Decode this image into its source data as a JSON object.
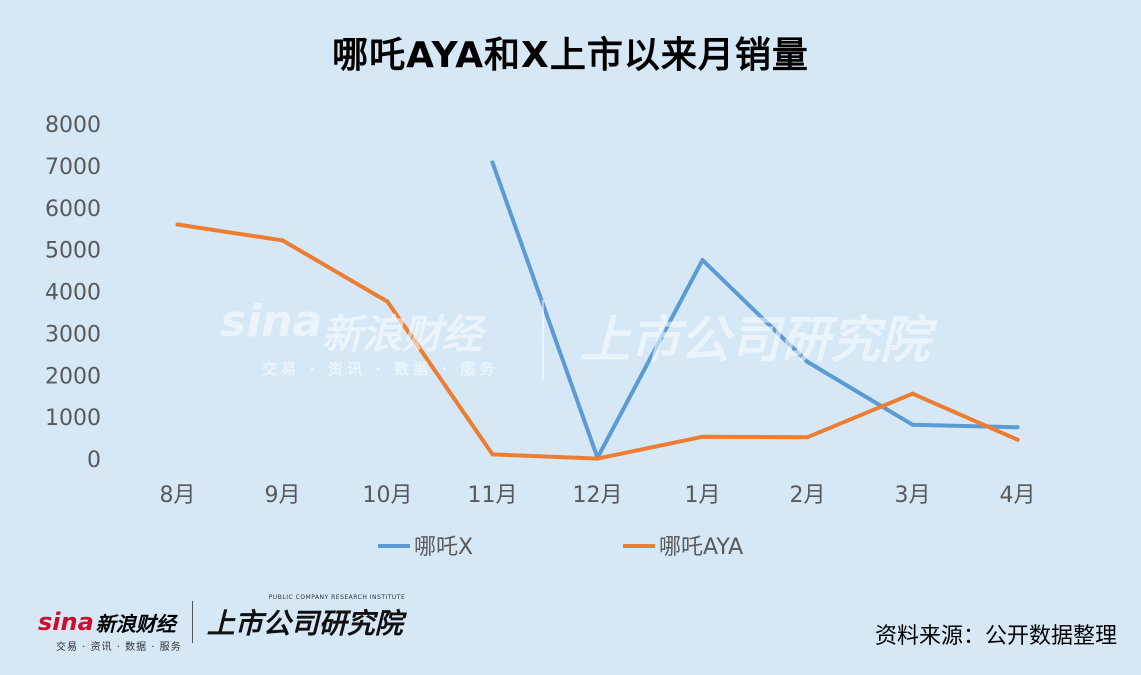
{
  "chart_data": {
    "type": "line",
    "title": "哪吒AYA和X上市以来月销量",
    "categories": [
      "8月",
      "9月",
      "10月",
      "11月",
      "12月",
      "1月",
      "2月",
      "3月",
      "4月"
    ],
    "ylim": [
      0,
      8000
    ],
    "yticks": [
      "0",
      "1000",
      "2000",
      "3000",
      "4000",
      "5000",
      "6000",
      "7000",
      "8000"
    ],
    "grid": false,
    "legend_position": "bottom",
    "series": [
      {
        "name": "哪吒X",
        "color": "#5b9bd5",
        "values": [
          null,
          null,
          null,
          7080,
          30,
          4750,
          2320,
          820,
          760
        ]
      },
      {
        "name": "哪吒AYA",
        "color": "#ed7d31",
        "values": [
          5600,
          5220,
          3760,
          110,
          10,
          530,
          520,
          1560,
          460
        ]
      }
    ]
  },
  "watermark": {
    "sina_logo": "sina",
    "sina_name": "新浪财经",
    "sina_sub": "交易 · 资讯 · 数据 · 服务",
    "institute": "上市公司研究院"
  },
  "footer": {
    "sina_logo": "sina",
    "sina_name": "新浪财经",
    "sina_sub": "交易 · 资讯 · 数据 · 服务",
    "institute": "上市公司研究院",
    "institute_tag": "PUBLIC COMPANY RESEARCH INSTITUTE",
    "source": "资料来源：公开数据整理"
  }
}
